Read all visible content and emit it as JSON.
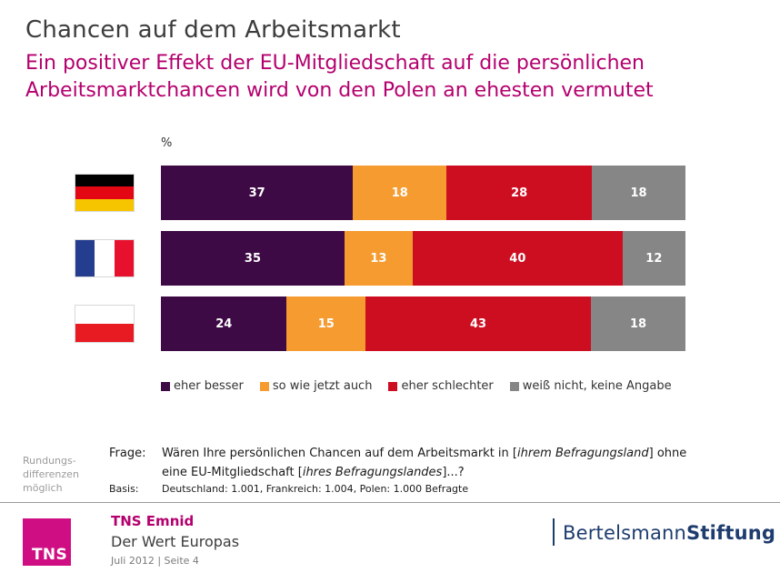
{
  "header": {
    "title": "Chancen auf dem Arbeitsmarkt",
    "subtitle": "Ein positiver Effekt der EU-Mitgliedschaft auf die persönlichen\nArbeitsmarktchancen wird von den Polen an ehesten vermutet"
  },
  "colors": {
    "accent_magenta": "#b4006e",
    "tns_pink": "#cf0e83",
    "bertelsmann_navy": "#1e3c6e",
    "title_gray": "#3c3c3c"
  },
  "chart_data": {
    "type": "bar",
    "orientation": "horizontal",
    "stacked": true,
    "unit_label": "%",
    "xlim": [
      0,
      100
    ],
    "legend_position": "bottom",
    "categories": [
      "Deutschland",
      "Frankreich",
      "Polen"
    ],
    "flags": [
      {
        "country": "deutschland",
        "layout": "horizontal",
        "colors": [
          "#000000",
          "#e30613",
          "#f7c500"
        ]
      },
      {
        "country": "frankreich",
        "layout": "vertical",
        "colors": [
          "#253d8f",
          "#ffffff",
          "#e8112d"
        ]
      },
      {
        "country": "polen",
        "layout": "horizontal",
        "colors": [
          "#ffffff",
          "#e81b23"
        ]
      }
    ],
    "series": [
      {
        "name": "eher besser",
        "color": "#3e0a45",
        "values": [
          37,
          35,
          24
        ]
      },
      {
        "name": "so wie jetzt auch",
        "color": "#f59b30",
        "values": [
          18,
          13,
          15
        ]
      },
      {
        "name": "eher schlechter",
        "color": "#cd0e21",
        "values": [
          28,
          40,
          43
        ]
      },
      {
        "name": "weiß nicht, keine Angabe",
        "color": "#868686",
        "values": [
          18,
          12,
          18
        ]
      }
    ]
  },
  "question": {
    "label": "Frage:",
    "part1": "Wären Ihre persönlichen Chancen auf dem Arbeitsmarkt in [",
    "italic1": "ihrem Befragungsland",
    "part2": "] ohne\neine EU-Mitgliedschaft [",
    "italic2": "ihres Befragungslandes",
    "part3": "]...?"
  },
  "basis": {
    "label": "Basis:",
    "text": "Deutschland: 1.001, Frankreich: 1.004, Polen: 1.000 Befragte"
  },
  "notes": {
    "rounding": "Rundungs-\ndifferenzen\nmöglich"
  },
  "footer": {
    "logo_text": "TNS",
    "brand": "TNS Emnid",
    "work": "Der Wert Europas",
    "meta": "Juli 2012  |  Seite 4",
    "bertelsmann_regular": "Bertelsmann",
    "bertelsmann_bold": "Stiftung"
  }
}
